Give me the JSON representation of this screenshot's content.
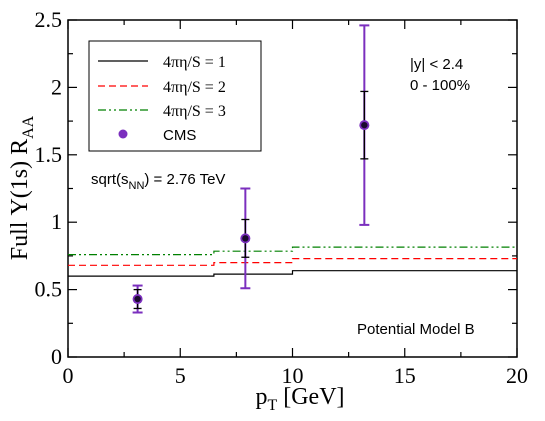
{
  "chart_data": {
    "type": "line",
    "title": "",
    "xlabel": "p",
    "xlabel_sub": "T",
    "xlabel_unit": " [GeV]",
    "ylabel": "Full Υ(1s) R",
    "ylabel_sub": "AA",
    "xlim": [
      0,
      20
    ],
    "ylim": [
      0,
      2.5
    ],
    "xticks": [
      "0",
      "5",
      "10",
      "15",
      "20"
    ],
    "yticks": [
      "0",
      "0.5",
      "1",
      "1.5",
      "2",
      "2.5"
    ],
    "grid": false,
    "legend_position": "top-left",
    "series": [
      {
        "name": "4πη/S = 1",
        "color": "#000000",
        "dash": "solid",
        "x": [
          0,
          6.5,
          6.5,
          10,
          10,
          20
        ],
        "y": [
          0.6,
          0.6,
          0.615,
          0.615,
          0.64,
          0.64
        ]
      },
      {
        "name": "4πη/S = 2",
        "color": "#ff0000",
        "dash": "dashed",
        "x": [
          0,
          6.5,
          6.5,
          10,
          10,
          20
        ],
        "y": [
          0.68,
          0.68,
          0.7,
          0.7,
          0.73,
          0.73
        ]
      },
      {
        "name": "4πη/S = 3",
        "color": "#008000",
        "dash": "dash-dot-dot",
        "x": [
          0,
          6.5,
          6.5,
          10,
          10,
          20
        ],
        "y": [
          0.76,
          0.76,
          0.785,
          0.785,
          0.815,
          0.815
        ]
      }
    ],
    "points": {
      "name": "CMS",
      "color": "#7b2fbe",
      "x": [
        3.1,
        7.9,
        13.2
      ],
      "y": [
        0.43,
        0.88,
        1.72
      ],
      "stat_err": [
        0.07,
        0.14,
        0.25
      ],
      "sys_err": [
        0.1,
        0.37,
        0.74
      ]
    },
    "annotations": {
      "energy_main": "sqrt(s",
      "energy_sub": "NN",
      "energy_tail": ") = 2.76 TeV",
      "rapidity": "|y| < 2.4",
      "centrality": "0 - 100%",
      "model": "Potential Model B"
    }
  }
}
